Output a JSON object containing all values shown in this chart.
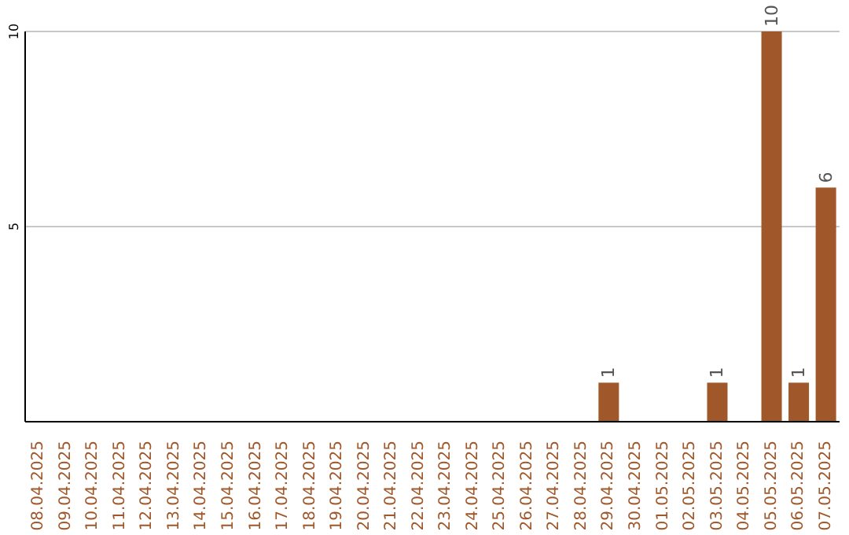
{
  "chart_data": {
    "type": "bar",
    "categories": [
      "08.04.2025",
      "09.04.2025",
      "10.04.2025",
      "11.04.2025",
      "12.04.2025",
      "13.04.2025",
      "14.04.2025",
      "15.04.2025",
      "16.04.2025",
      "17.04.2025",
      "18.04.2025",
      "19.04.2025",
      "20.04.2025",
      "21.04.2025",
      "22.04.2025",
      "23.04.2025",
      "24.04.2025",
      "25.04.2025",
      "26.04.2025",
      "27.04.2025",
      "28.04.2025",
      "29.04.2025",
      "30.04.2025",
      "01.05.2025",
      "02.05.2025",
      "03.05.2025",
      "04.05.2025",
      "05.05.2025",
      "06.05.2025",
      "07.05.2025"
    ],
    "values": [
      0,
      0,
      0,
      0,
      0,
      0,
      0,
      0,
      0,
      0,
      0,
      0,
      0,
      0,
      0,
      0,
      0,
      0,
      0,
      0,
      0,
      1,
      0,
      0,
      0,
      1,
      0,
      10,
      1,
      6
    ],
    "value_labels": [
      null,
      null,
      null,
      null,
      null,
      null,
      null,
      null,
      null,
      null,
      null,
      null,
      null,
      null,
      null,
      null,
      null,
      null,
      null,
      null,
      null,
      "1",
      null,
      null,
      null,
      "1",
      null,
      "10",
      "1",
      "6"
    ],
    "color": "#a0572a",
    "ylim": [
      0,
      10
    ],
    "yticks": [
      5,
      10
    ],
    "grid": "y"
  }
}
